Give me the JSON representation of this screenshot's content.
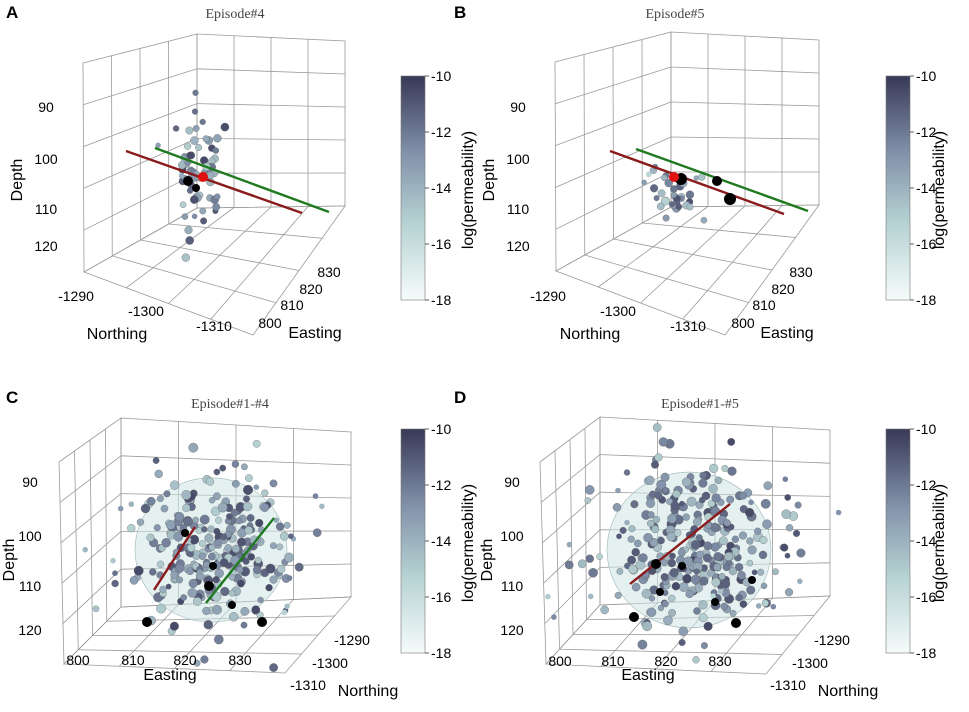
{
  "chart_data": [
    {
      "type": "scatter",
      "panel": "A",
      "title": "Episode#4",
      "zlabel": "Depth",
      "xlabel": "Northing",
      "ylabel": "Easting",
      "z_ticks": [
        "90",
        "100",
        "110",
        "120"
      ],
      "x_ticks": [
        "-1290",
        "-1300",
        "-1310"
      ],
      "y_ticks": [
        "800",
        "810",
        "820",
        "830"
      ],
      "colorbar": {
        "label": "log(permeability)",
        "ticks": [
          "-10",
          "-12",
          "-14",
          "-16",
          "-18"
        ],
        "range": [
          -18,
          -10
        ]
      },
      "point_count": 60,
      "large_black_points": 2,
      "lines": [
        {
          "name": "red fault",
          "color": "#8b1a1a"
        },
        {
          "name": "green fault",
          "color": "#1f7a1f"
        }
      ],
      "sphere": false
    },
    {
      "type": "scatter",
      "panel": "B",
      "title": "Episode#5",
      "zlabel": "Depth",
      "xlabel": "Northing",
      "ylabel": "Easting",
      "z_ticks": [
        "90",
        "100",
        "110",
        "120"
      ],
      "x_ticks": [
        "-1290",
        "-1300",
        "-1310"
      ],
      "y_ticks": [
        "800",
        "810",
        "820",
        "830"
      ],
      "colorbar": {
        "label": "log(permeability)",
        "ticks": [
          "-10",
          "-12",
          "-14",
          "-16",
          "-18"
        ],
        "range": [
          -18,
          -10
        ]
      },
      "point_count": 30,
      "large_black_points": 3,
      "lines": [
        {
          "name": "red fault",
          "color": "#8b1a1a"
        },
        {
          "name": "green fault",
          "color": "#1f7a1f"
        }
      ],
      "sphere": false
    },
    {
      "type": "scatter",
      "panel": "C",
      "title": "Episode#1-#4",
      "zlabel": "Depth",
      "xlabel": "Easting",
      "ylabel": "Northing",
      "z_ticks": [
        "90",
        "100",
        "110",
        "120"
      ],
      "x_ticks": [
        "800",
        "810",
        "820",
        "830"
      ],
      "y_ticks": [
        "-1290",
        "-1300",
        "-1310"
      ],
      "colorbar": {
        "label": "log(permeability)",
        "ticks": [
          "-10",
          "-12",
          "-14",
          "-16",
          "-18"
        ],
        "range": [
          -18,
          -10
        ]
      },
      "point_count": 260,
      "large_black_points": 6,
      "lines": [
        {
          "name": "red fault",
          "color": "#8b1a1a"
        },
        {
          "name": "green fault",
          "color": "#1f7a1f"
        }
      ],
      "sphere": true
    },
    {
      "type": "scatter",
      "panel": "D",
      "title": "Episode#1-#5",
      "zlabel": "Depth",
      "xlabel": "Easting",
      "ylabel": "Northing",
      "z_ticks": [
        "90",
        "100",
        "110",
        "120"
      ],
      "x_ticks": [
        "800",
        "810",
        "820",
        "830"
      ],
      "y_ticks": [
        "-1290",
        "-1300",
        "-1310"
      ],
      "colorbar": {
        "label": "log(permeability)",
        "ticks": [
          "-10",
          "-12",
          "-14",
          "-16",
          "-18"
        ],
        "range": [
          -18,
          -10
        ]
      },
      "point_count": 300,
      "large_black_points": 7,
      "lines": [
        {
          "name": "red fault",
          "color": "#8b1a1a"
        }
      ],
      "sphere": true
    }
  ],
  "colors": {
    "cmap_high": "#3a3b5a",
    "cmap_mid": "#8c9bb0",
    "cmap_low": "#f4fafa",
    "sphere": "#cfe3e3",
    "grid": "#9a9a9a"
  }
}
